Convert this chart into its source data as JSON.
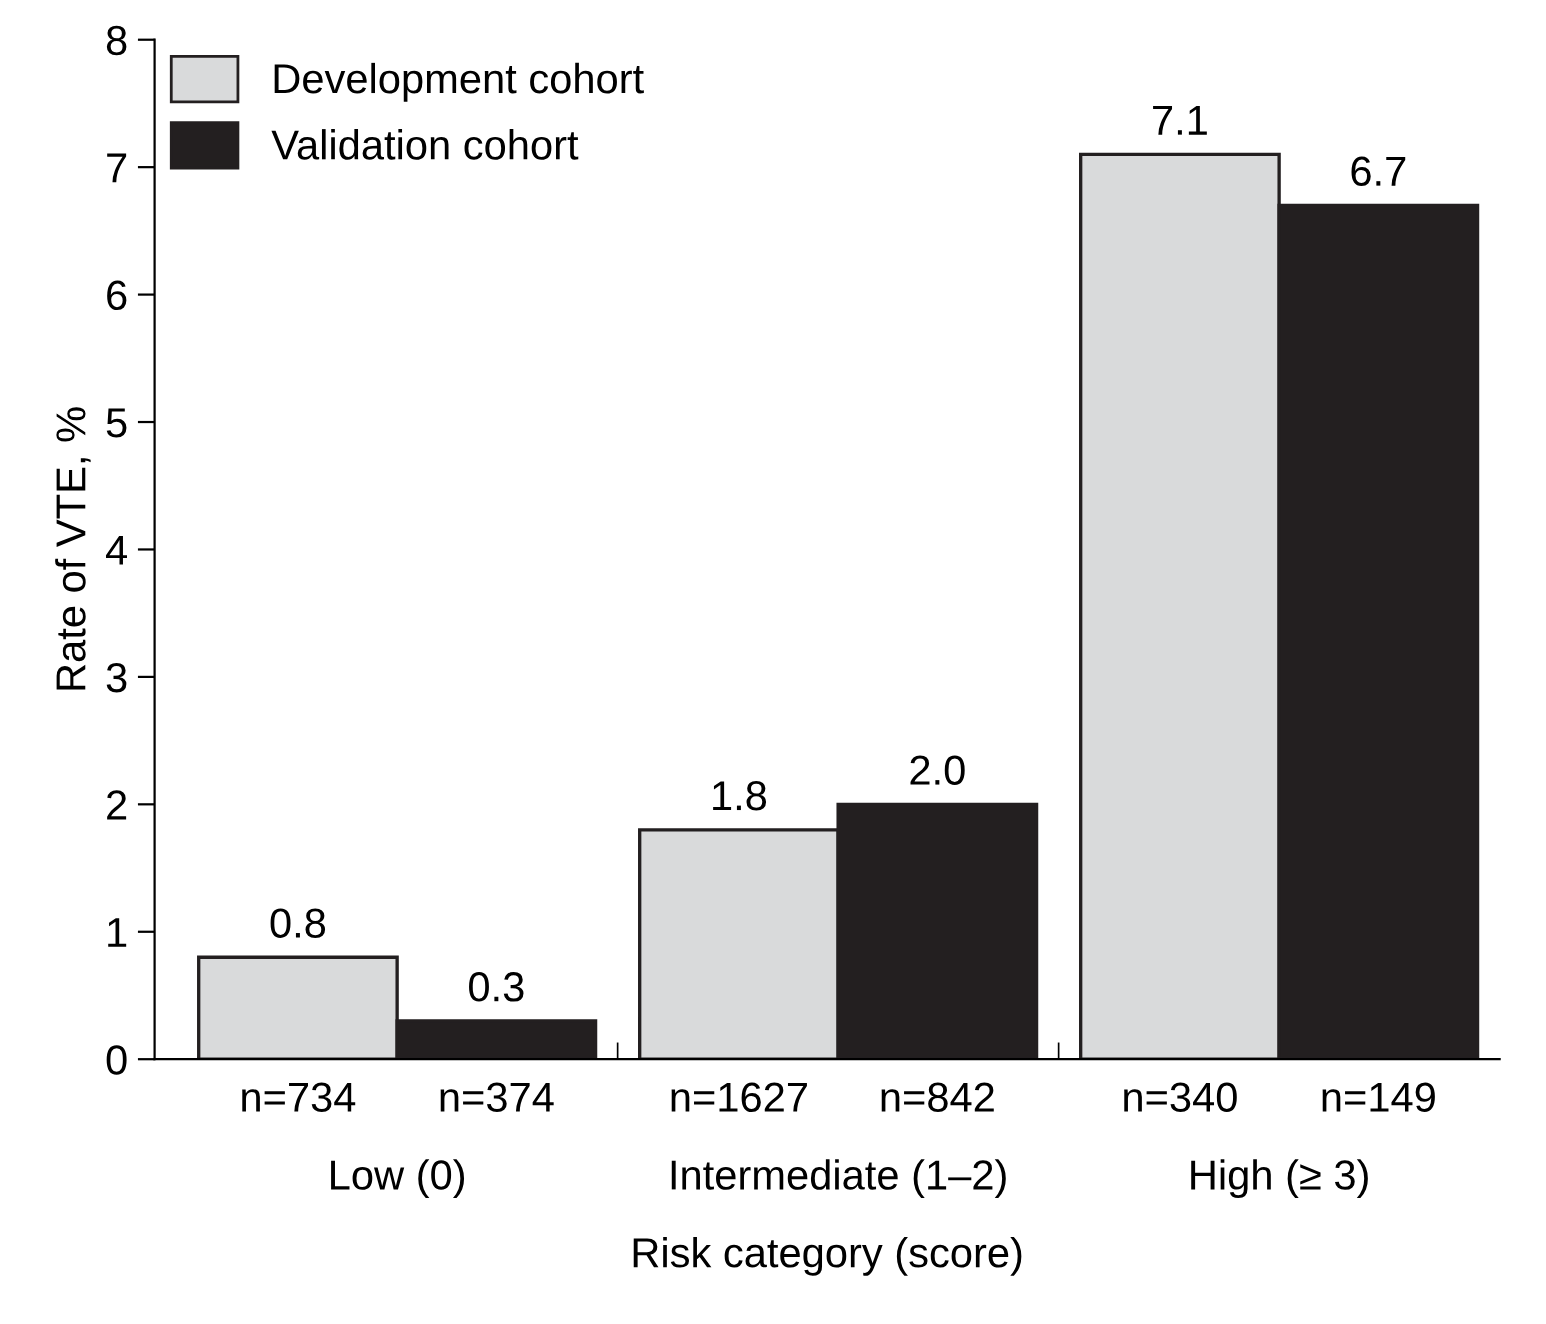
{
  "chart_data": {
    "type": "bar",
    "xlabel": "Risk category (score)",
    "ylabel": "Rate of VTE, %",
    "categories": [
      "Low (0)",
      "Intermediate (1–2)",
      "High (≥ 3)"
    ],
    "series": [
      {
        "name": "Development cohort",
        "color": "#d9dadb",
        "values": [
          0.8,
          1.8,
          7.1
        ],
        "value_labels": [
          "0.8",
          "1.8",
          "7.1"
        ]
      },
      {
        "name": "Validation cohort",
        "color": "#231f20",
        "values": [
          0.3,
          2.0,
          6.7
        ],
        "value_labels": [
          "0.3",
          "2.0",
          "6.7"
        ]
      }
    ],
    "ylim": [
      0,
      8
    ],
    "yticks": [
      0,
      1,
      2,
      3,
      4,
      5,
      6,
      7,
      8
    ],
    "grid": false,
    "legend": "top left",
    "annotations": [
      "n=734",
      "n=374",
      "n=1627",
      "n=842",
      "n=340",
      "n=149"
    ]
  }
}
